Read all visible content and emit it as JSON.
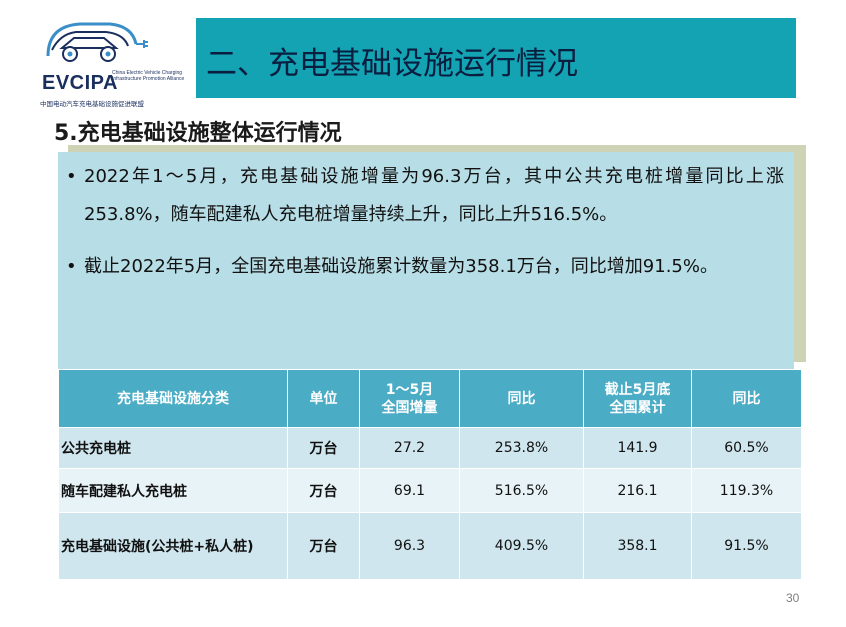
{
  "logo": {
    "name": "EVCIPA",
    "subtitle": "China Electric Vehicle Charging Infrastructure Promotion Alliance",
    "cn": "中国电动汽车充电基础设施促进联盟",
    "brand_color": "#1a2f5e",
    "accent_color": "#3a8fc9"
  },
  "header": {
    "title": "二、充电基础设施运行情况",
    "bar_color": "#13a3b3"
  },
  "section": {
    "title": "5.充电基础设施整体运行情况"
  },
  "bullets": [
    {
      "marker": "•",
      "text": "2022年1～5月，充电基础设施增量为96.3万台，其中公共充电桩增量同比上涨253.8%，随车配建私人充电桩增量持续上升，同比上升516.5%。"
    },
    {
      "marker": "•",
      "text": "截止2022年5月，全国充电基础设施累计数量为358.1万台，同比增加91.5%。"
    }
  ],
  "table": {
    "headers": [
      "充电基础设施分类",
      "单位",
      "1～5月\n全国增量",
      "同比",
      "截止5月底\n全国累计",
      "同比"
    ],
    "rows": [
      [
        "公共充电桩",
        "万台",
        "27.2",
        "253.8%",
        "141.9",
        "60.5%"
      ],
      [
        "随车配建私人充电桩",
        "万台",
        "69.1",
        "516.5%",
        "216.1",
        "119.3%"
      ],
      [
        "充电基础设施(公共桩+私人桩)",
        "万台",
        "96.3",
        "409.5%",
        "358.1",
        "91.5%"
      ]
    ],
    "header_color": "#4bacc6"
  },
  "page": {
    "number": "30"
  }
}
